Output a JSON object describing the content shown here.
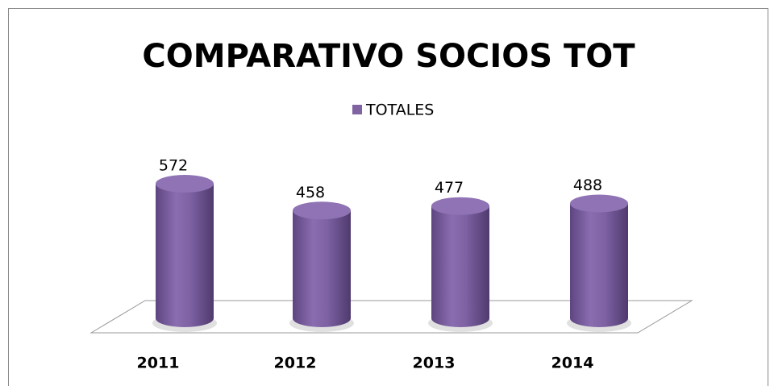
{
  "chart_data": {
    "type": "bar3d-cylinder",
    "title": "COMPARATIVO SOCIOS TOT",
    "categories": [
      "2011",
      "2012",
      "2013",
      "2014"
    ],
    "series": [
      {
        "name": "TOTALES",
        "color": "#8064a2",
        "values": [
          572,
          458,
          477,
          488
        ]
      }
    ],
    "legend": "top"
  }
}
